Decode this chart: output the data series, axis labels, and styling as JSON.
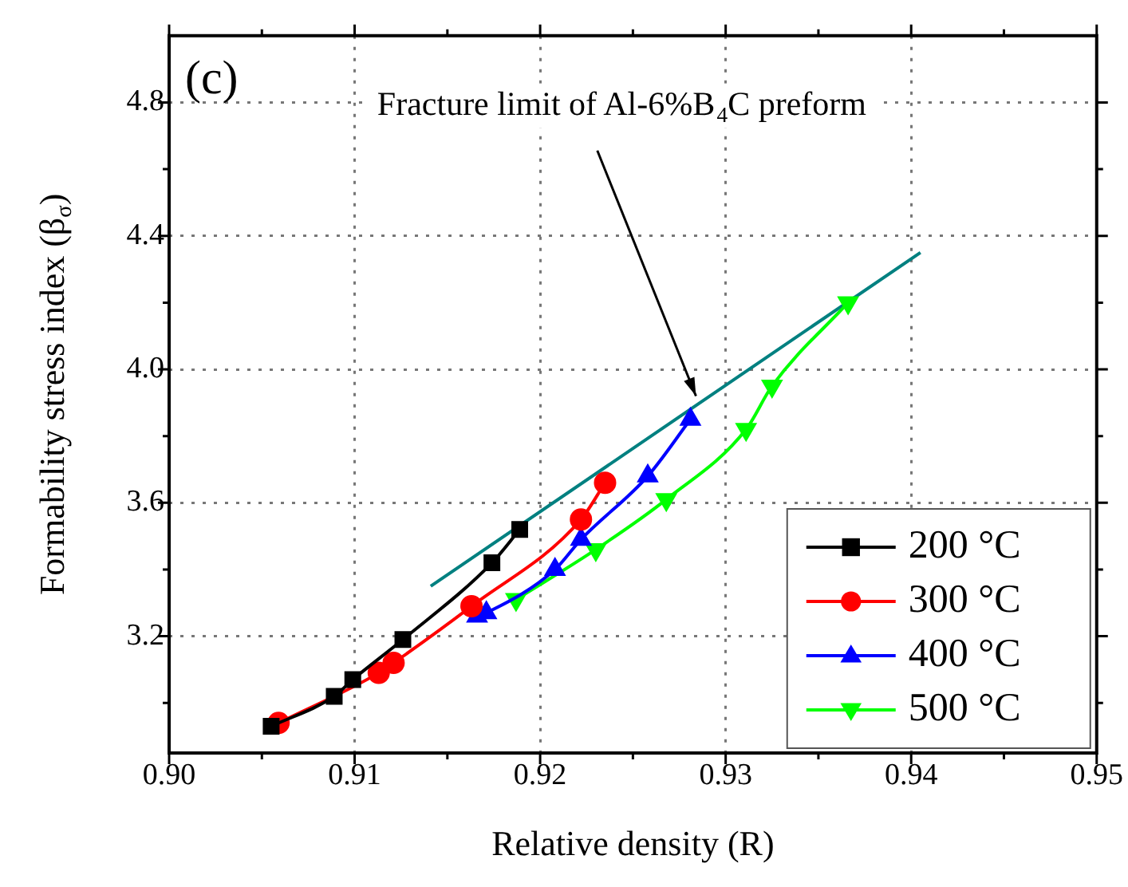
{
  "chart_data": {
    "type": "line",
    "xlabel": "Relative density (R)",
    "ylabel": "Formability stress index (β$_{σ}$)",
    "xlim": [
      0.9,
      0.95
    ],
    "ylim": [
      2.85,
      5.0
    ],
    "xticks": [
      {
        "value": 0.9,
        "label": "0.90"
      },
      {
        "value": 0.905,
        "label": null
      },
      {
        "value": 0.91,
        "label": "0.91"
      },
      {
        "value": 0.915,
        "label": null
      },
      {
        "value": 0.92,
        "label": "0.92"
      },
      {
        "value": 0.925,
        "label": null
      },
      {
        "value": 0.93,
        "label": "0.93"
      },
      {
        "value": 0.935,
        "label": null
      },
      {
        "value": 0.94,
        "label": "0.94"
      },
      {
        "value": 0.945,
        "label": null
      },
      {
        "value": 0.95,
        "label": "0.95"
      }
    ],
    "yticks": [
      {
        "value": 3.0,
        "label": null
      },
      {
        "value": 3.2,
        "label": "3.2"
      },
      {
        "value": 3.4,
        "label": null
      },
      {
        "value": 3.6,
        "label": "3.6"
      },
      {
        "value": 3.8,
        "label": null
      },
      {
        "value": 4.0,
        "label": "4.0"
      },
      {
        "value": 4.2,
        "label": null
      },
      {
        "value": 4.4,
        "label": "4.4"
      },
      {
        "value": 4.6,
        "label": null
      },
      {
        "value": 4.8,
        "label": "4.8"
      }
    ],
    "grid": true,
    "legend": "bottom right",
    "annotations": [
      "(c)",
      {
        "text": "Fracture limit of Al-6%B$_{4}$C preform",
        "x": 0.9284,
        "y": 3.92
      }
    ],
    "series": [
      {
        "name": "200 °C",
        "color": "#000000",
        "marker": "square",
        "x": [
          0.9055,
          0.9089,
          0.9099,
          0.9126,
          0.9174,
          0.9189
        ],
        "values": [
          2.93,
          3.02,
          3.07,
          3.19,
          3.42,
          3.52
        ]
      },
      {
        "name": "300 °C",
        "color": "#ff0000",
        "marker": "circle",
        "x": [
          0.9059,
          0.9113,
          0.9121,
          0.9163,
          0.9222,
          0.9235
        ],
        "values": [
          2.94,
          3.09,
          3.12,
          3.29,
          3.55,
          3.66
        ]
      },
      {
        "name": "400 °C",
        "color": "#0000ff",
        "marker": "triangle",
        "x": [
          0.9166,
          0.9171,
          0.9208,
          0.9222,
          0.9258,
          0.9281
        ],
        "values": [
          3.26,
          3.27,
          3.4,
          3.49,
          3.68,
          3.85
        ]
      },
      {
        "name": "500 °C",
        "color": "#00ff00",
        "marker": "triangle-down",
        "x": [
          0.9187,
          0.923,
          0.9268,
          0.9311,
          0.9325,
          0.9366
        ],
        "values": [
          3.31,
          3.46,
          3.61,
          3.82,
          3.95,
          4.2
        ]
      },
      {
        "type": "line",
        "color": "#008080",
        "marker": "none",
        "x": [
          0.9141,
          0.9405
        ],
        "values": [
          3.35,
          4.35
        ]
      }
    ]
  }
}
